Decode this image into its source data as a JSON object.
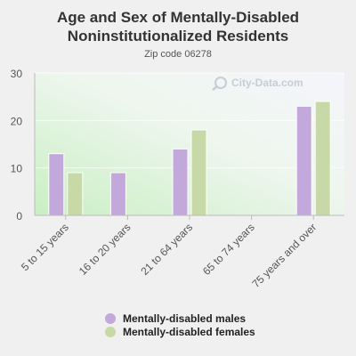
{
  "chart_data": {
    "type": "bar",
    "title": "Age and Sex of Mentally-Disabled Noninstitutionalized Residents",
    "subtitle": "Zip code 06278",
    "categories": [
      "5 to 15 years",
      "16 to 20 years",
      "21 to 64 years",
      "65 to 74 years",
      "75 years and over"
    ],
    "series": [
      {
        "name": "Mentally-disabled males",
        "color": "#c3a8db",
        "values": [
          13,
          9,
          14,
          0,
          23
        ]
      },
      {
        "name": "Mentally-disabled females",
        "color": "#c6d9a6",
        "values": [
          9,
          0,
          18,
          0,
          24
        ]
      }
    ],
    "ylim": [
      0,
      30
    ],
    "yticks": [
      0,
      10,
      20,
      30
    ],
    "grid": true,
    "legend_position": "bottom",
    "watermark": "City-Data.com"
  }
}
